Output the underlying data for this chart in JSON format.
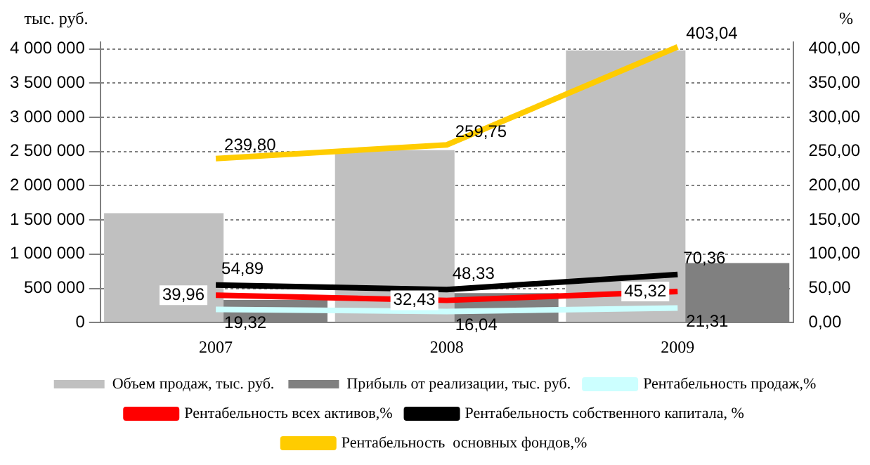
{
  "chart_data": {
    "type": "bar",
    "ylabel": "тыс. руб.",
    "y2label": "%",
    "categories": [
      "2007",
      "2008",
      "2009"
    ],
    "series": [
      {
        "name": "Объем продаж, тыс. руб.",
        "type": "bar",
        "color": "#c0c0c0",
        "values": [
          1600000,
          2520000,
          3980000
        ]
      },
      {
        "name": "Прибыль от реализации, тыс. руб.",
        "type": "bar",
        "color": "#808080",
        "values": [
          330000,
          430000,
          870000
        ]
      },
      {
        "name": "Рентабельность продаж,%",
        "type": "line",
        "axis": "y2",
        "color": "#ccffff",
        "values": [
          19.32,
          16.04,
          21.31
        ],
        "value_labels": [
          "19,32",
          "16,04",
          "21,31"
        ]
      },
      {
        "name": "Рентабельность всех активов,%",
        "type": "line",
        "axis": "y2",
        "color": "#ff0000",
        "values": [
          39.96,
          32.43,
          45.32
        ],
        "value_labels": [
          "39,96",
          "32,43",
          "45,32"
        ]
      },
      {
        "name": "Рентабельность собственного капитала, %",
        "type": "line",
        "axis": "y2",
        "color": "#000000",
        "values": [
          54.89,
          48.33,
          70.36
        ],
        "value_labels": [
          "54,89",
          "48,33",
          "70,36"
        ]
      },
      {
        "name": "Рентабельность  основных фондов,%",
        "type": "line",
        "axis": "y2",
        "color": "#ffcc00",
        "values": [
          239.8,
          259.75,
          403.04
        ],
        "value_labels": [
          "239,80",
          "259,75",
          "403,04"
        ]
      }
    ],
    "ylim": [
      0,
      4100000
    ],
    "yticks": [
      {
        "value": 0,
        "label": "0"
      },
      {
        "value": 500000,
        "label": "500 000"
      },
      {
        "value": 1000000,
        "label": "1 000 000"
      },
      {
        "value": 1500000,
        "label": "1 500 000"
      },
      {
        "value": 2000000,
        "label": "2 000 000"
      },
      {
        "value": 2500000,
        "label": "2 500 000"
      },
      {
        "value": 3000000,
        "label": "3 000 000"
      },
      {
        "value": 3500000,
        "label": "3 500 000"
      },
      {
        "value": 4000000,
        "label": "4 000 000"
      }
    ],
    "y2lim": [
      0,
      410
    ],
    "y2ticks": [
      {
        "value": 0,
        "label": "0,00"
      },
      {
        "value": 50,
        "label": "50,00"
      },
      {
        "value": 100,
        "label": "100,00"
      },
      {
        "value": 150,
        "label": "150,00"
      },
      {
        "value": 200,
        "label": "200,00"
      },
      {
        "value": 250,
        "label": "250,00"
      },
      {
        "value": 300,
        "label": "300,00"
      },
      {
        "value": 350,
        "label": "350,00"
      },
      {
        "value": 400,
        "label": "400,00"
      }
    ],
    "grid": "y",
    "legend": "bottom",
    "marker": "none",
    "line_style": "solid"
  }
}
